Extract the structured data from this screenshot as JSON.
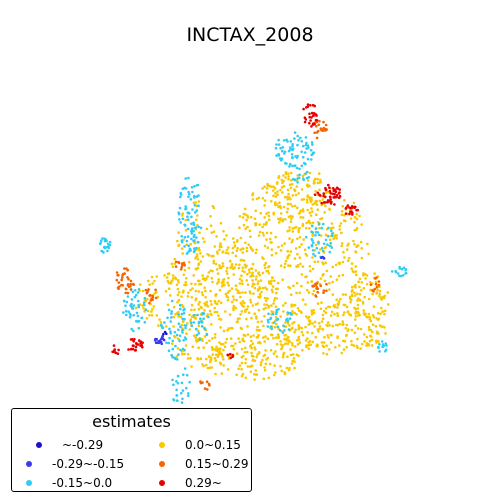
{
  "title": "INCTAX_2008",
  "legend": {
    "title": "estimates",
    "placement": "lower-left",
    "items": [
      {
        "label": "~-0.29",
        "color": "#1b0fd0"
      },
      {
        "label": "-0.29~-0.15",
        "color": "#3a3af0"
      },
      {
        "label": "-0.15~0.0",
        "color": "#30ccf5"
      },
      {
        "label": "0.0~0.15",
        "color": "#f8c800"
      },
      {
        "label": "0.15~0.29",
        "color": "#f56400"
      },
      {
        "label": "0.29~",
        "color": "#e80000"
      }
    ]
  }
}
